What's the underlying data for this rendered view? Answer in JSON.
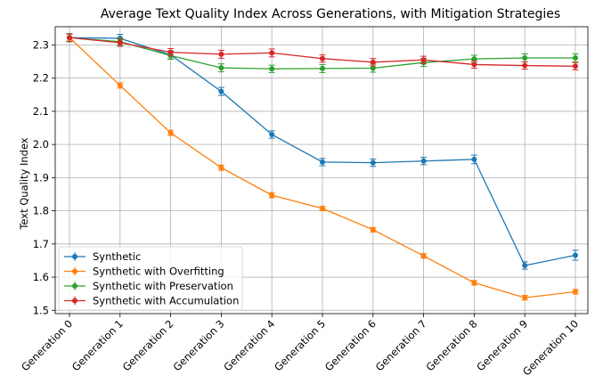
{
  "chart_data": {
    "type": "line",
    "title": "Average Text Quality Index Across Generations, with Mitigation Strategies",
    "xlabel": "",
    "ylabel": "Text Quality Index",
    "categories": [
      "Generation 0",
      "Generation 1",
      "Generation 2",
      "Generation 3",
      "Generation 4",
      "Generation 5",
      "Generation 6",
      "Generation 7",
      "Generation 8",
      "Generation 9",
      "Generation 10"
    ],
    "ylim": [
      1.49,
      2.355
    ],
    "yticks": [
      "1.5",
      "1.6",
      "1.7",
      "1.8",
      "1.9",
      "2.0",
      "2.1",
      "2.2",
      "2.3"
    ],
    "grid": true,
    "legend_position": "lower-left",
    "series": [
      {
        "name": "Synthetic",
        "color": "#1f77b4",
        "values": [
          2.322,
          2.32,
          2.27,
          2.16,
          2.03,
          1.947,
          1.945,
          1.95,
          1.955,
          1.635,
          1.666
        ],
        "errors": [
          0.012,
          0.012,
          0.012,
          0.012,
          0.011,
          0.011,
          0.011,
          0.011,
          0.013,
          0.011,
          0.015
        ]
      },
      {
        "name": "Synthetic with Overfitting",
        "color": "#ff7f0e",
        "values": [
          2.322,
          2.178,
          2.035,
          1.93,
          1.847,
          1.807,
          1.743,
          1.664,
          1.583,
          1.538,
          1.556
        ],
        "errors": [
          0.01,
          0.008,
          0.008,
          0.008,
          0.008,
          0.007,
          0.007,
          0.007,
          0.007,
          0.007,
          0.007
        ]
      },
      {
        "name": "Synthetic with Preservation",
        "color": "#2ca02c",
        "values": [
          2.322,
          2.31,
          2.268,
          2.231,
          2.228,
          2.229,
          2.23,
          2.247,
          2.258,
          2.261,
          2.261
        ],
        "errors": [
          0.012,
          0.011,
          0.011,
          0.012,
          0.011,
          0.012,
          0.012,
          0.012,
          0.011,
          0.012,
          0.012
        ]
      },
      {
        "name": "Synthetic with Accumulation",
        "color": "#d62728",
        "values": [
          2.322,
          2.307,
          2.278,
          2.272,
          2.276,
          2.259,
          2.248,
          2.255,
          2.241,
          2.238,
          2.236
        ],
        "errors": [
          0.011,
          0.011,
          0.011,
          0.012,
          0.012,
          0.011,
          0.011,
          0.011,
          0.011,
          0.011,
          0.011
        ]
      }
    ]
  }
}
